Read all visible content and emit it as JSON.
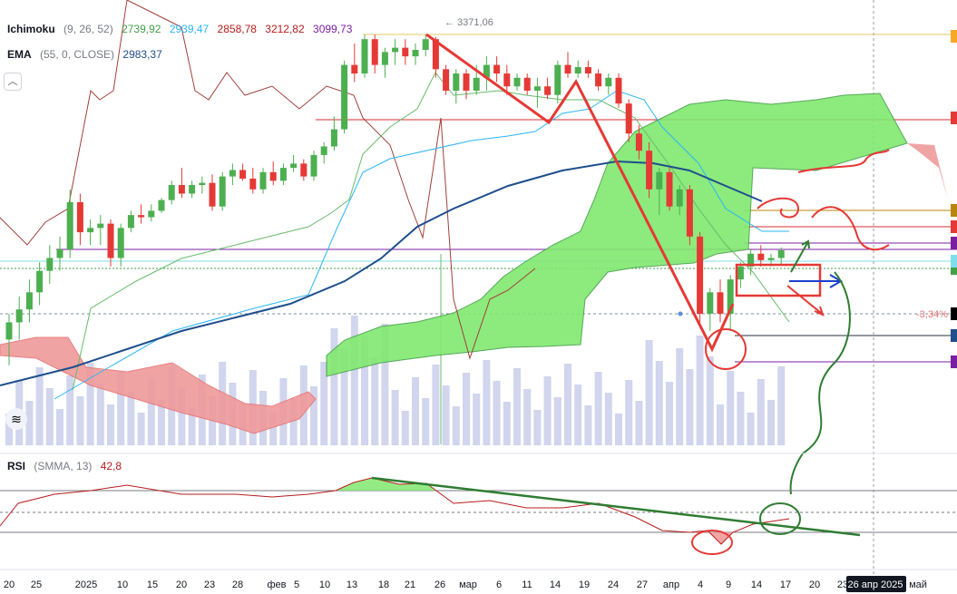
{
  "legend": {
    "ichimoku": {
      "name": "Ichimoku",
      "params": "(9, 26, 52)",
      "values": [
        {
          "v": "2739,92",
          "color": "#43a047"
        },
        {
          "v": "2939,47",
          "color": "#29b6f6"
        },
        {
          "v": "2858,78",
          "color": "#b71c1c"
        },
        {
          "v": "3212,82",
          "color": "#b71c1c"
        },
        {
          "v": "3099,73",
          "color": "#7b1fa2"
        }
      ]
    },
    "ema": {
      "name": "EMA",
      "params": "(55, 0, CLOSE)",
      "value": "2983,37",
      "color": "#1e4e8c"
    },
    "rsi": {
      "name": "RSI",
      "params": "(SMMA, 13)",
      "value": "42,8",
      "color": "#b71c1c"
    }
  },
  "icons": {
    "collapse": "chevron-up-icon",
    "logo": "tradingview-logo-icon"
  },
  "chart_data": {
    "type": "candlestick",
    "annotation_high": "3371,06",
    "percent_label": "-3,34%",
    "x_labels": [
      "20",
      "25",
      "2025",
      "10",
      "15",
      "20",
      "23",
      "28",
      "фев",
      "5",
      "10",
      "13",
      "18",
      "21",
      "26",
      "мар",
      "6",
      "11",
      "14",
      "19",
      "24",
      "27",
      "апр",
      "4",
      "9",
      "14",
      "17",
      "20",
      "23",
      "26 апр 2025",
      "май"
    ],
    "highlighted_date": "26 апр 2025",
    "candles": [
      {
        "o": 2660,
        "h": 2720,
        "l": 2600,
        "c": 2700
      },
      {
        "o": 2700,
        "h": 2760,
        "l": 2660,
        "c": 2730
      },
      {
        "o": 2730,
        "h": 2800,
        "l": 2700,
        "c": 2770
      },
      {
        "o": 2770,
        "h": 2840,
        "l": 2740,
        "c": 2820
      },
      {
        "o": 2820,
        "h": 2880,
        "l": 2790,
        "c": 2850
      },
      {
        "o": 2850,
        "h": 2900,
        "l": 2820,
        "c": 2870
      },
      {
        "o": 2870,
        "h": 3010,
        "l": 2850,
        "c": 2980
      },
      {
        "o": 2980,
        "h": 3000,
        "l": 2880,
        "c": 2910
      },
      {
        "o": 2910,
        "h": 2940,
        "l": 2880,
        "c": 2920
      },
      {
        "o": 2920,
        "h": 2950,
        "l": 2880,
        "c": 2930
      },
      {
        "o": 2930,
        "h": 2940,
        "l": 2830,
        "c": 2850
      },
      {
        "o": 2850,
        "h": 2930,
        "l": 2830,
        "c": 2920
      },
      {
        "o": 2920,
        "h": 2960,
        "l": 2910,
        "c": 2950
      },
      {
        "o": 2950,
        "h": 2975,
        "l": 2930,
        "c": 2945
      },
      {
        "o": 2945,
        "h": 2975,
        "l": 2935,
        "c": 2960
      },
      {
        "o": 2960,
        "h": 2990,
        "l": 2955,
        "c": 2985
      },
      {
        "o": 2985,
        "h": 3030,
        "l": 2975,
        "c": 3020
      },
      {
        "o": 3020,
        "h": 3060,
        "l": 2990,
        "c": 3000
      },
      {
        "o": 3000,
        "h": 3030,
        "l": 2990,
        "c": 3020
      },
      {
        "o": 3020,
        "h": 3040,
        "l": 3000,
        "c": 3025
      },
      {
        "o": 3025,
        "h": 3045,
        "l": 2960,
        "c": 2970
      },
      {
        "o": 2970,
        "h": 3050,
        "l": 2960,
        "c": 3040
      },
      {
        "o": 3040,
        "h": 3070,
        "l": 3020,
        "c": 3055
      },
      {
        "o": 3055,
        "h": 3070,
        "l": 3030,
        "c": 3035
      },
      {
        "o": 3035,
        "h": 3060,
        "l": 3000,
        "c": 3010
      },
      {
        "o": 3010,
        "h": 3060,
        "l": 3000,
        "c": 3050
      },
      {
        "o": 3050,
        "h": 3075,
        "l": 3020,
        "c": 3030
      },
      {
        "o": 3030,
        "h": 3070,
        "l": 3020,
        "c": 3060
      },
      {
        "o": 3060,
        "h": 3090,
        "l": 3050,
        "c": 3070
      },
      {
        "o": 3070,
        "h": 3080,
        "l": 3030,
        "c": 3040
      },
      {
        "o": 3040,
        "h": 3100,
        "l": 3030,
        "c": 3090
      },
      {
        "o": 3090,
        "h": 3120,
        "l": 3070,
        "c": 3110
      },
      {
        "o": 3110,
        "h": 3180,
        "l": 3100,
        "c": 3150
      },
      {
        "o": 3150,
        "h": 3310,
        "l": 3140,
        "c": 3300
      },
      {
        "o": 3300,
        "h": 3350,
        "l": 3260,
        "c": 3280
      },
      {
        "o": 3280,
        "h": 3370,
        "l": 3270,
        "c": 3360
      },
      {
        "o": 3360,
        "h": 3371,
        "l": 3280,
        "c": 3300
      },
      {
        "o": 3300,
        "h": 3340,
        "l": 3270,
        "c": 3330
      },
      {
        "o": 3330,
        "h": 3360,
        "l": 3300,
        "c": 3340
      },
      {
        "o": 3340,
        "h": 3360,
        "l": 3300,
        "c": 3320
      },
      {
        "o": 3320,
        "h": 3350,
        "l": 3300,
        "c": 3335
      },
      {
        "o": 3335,
        "h": 3371,
        "l": 3320,
        "c": 3360
      },
      {
        "o": 3360,
        "h": 3365,
        "l": 3270,
        "c": 3290
      },
      {
        "o": 3290,
        "h": 3300,
        "l": 3230,
        "c": 3240
      },
      {
        "o": 3240,
        "h": 3290,
        "l": 3210,
        "c": 3280
      },
      {
        "o": 3280,
        "h": 3290,
        "l": 3220,
        "c": 3240
      },
      {
        "o": 3240,
        "h": 3300,
        "l": 3230,
        "c": 3270
      },
      {
        "o": 3270,
        "h": 3320,
        "l": 3240,
        "c": 3300
      },
      {
        "o": 3300,
        "h": 3320,
        "l": 3260,
        "c": 3280
      },
      {
        "o": 3280,
        "h": 3300,
        "l": 3230,
        "c": 3250
      },
      {
        "o": 3250,
        "h": 3280,
        "l": 3240,
        "c": 3270
      },
      {
        "o": 3270,
        "h": 3280,
        "l": 3230,
        "c": 3240
      },
      {
        "o": 3240,
        "h": 3270,
        "l": 3200,
        "c": 3250
      },
      {
        "o": 3250,
        "h": 3270,
        "l": 3220,
        "c": 3230
      },
      {
        "o": 3230,
        "h": 3310,
        "l": 3210,
        "c": 3300
      },
      {
        "o": 3300,
        "h": 3330,
        "l": 3270,
        "c": 3280
      },
      {
        "o": 3280,
        "h": 3310,
        "l": 3270,
        "c": 3295
      },
      {
        "o": 3295,
        "h": 3310,
        "l": 3270,
        "c": 3280
      },
      {
        "o": 3280,
        "h": 3290,
        "l": 3240,
        "c": 3250
      },
      {
        "o": 3250,
        "h": 3280,
        "l": 3230,
        "c": 3270
      },
      {
        "o": 3270,
        "h": 3280,
        "l": 3200,
        "c": 3210
      },
      {
        "o": 3210,
        "h": 3220,
        "l": 3120,
        "c": 3140
      },
      {
        "o": 3140,
        "h": 3160,
        "l": 3080,
        "c": 3100
      },
      {
        "o": 3100,
        "h": 3120,
        "l": 2990,
        "c": 3010
      },
      {
        "o": 3010,
        "h": 3060,
        "l": 2950,
        "c": 3050
      },
      {
        "o": 3050,
        "h": 3060,
        "l": 2960,
        "c": 2970
      },
      {
        "o": 2970,
        "h": 3020,
        "l": 2950,
        "c": 3010
      },
      {
        "o": 3010,
        "h": 3020,
        "l": 2880,
        "c": 2900
      },
      {
        "o": 2900,
        "h": 2910,
        "l": 2700,
        "c": 2720
      },
      {
        "o": 2720,
        "h": 2780,
        "l": 2680,
        "c": 2770
      },
      {
        "o": 2770,
        "h": 2800,
        "l": 2700,
        "c": 2720
      },
      {
        "o": 2720,
        "h": 2810,
        "l": 2680,
        "c": 2800
      },
      {
        "o": 2800,
        "h": 2840,
        "l": 2780,
        "c": 2830
      },
      {
        "o": 2830,
        "h": 2870,
        "l": 2810,
        "c": 2860
      },
      {
        "o": 2860,
        "h": 2880,
        "l": 2830,
        "c": 2845
      },
      {
        "o": 2845,
        "h": 2860,
        "l": 2830,
        "c": 2850
      },
      {
        "o": 2850,
        "h": 2875,
        "l": 2835,
        "c": 2868
      }
    ]
  }
}
